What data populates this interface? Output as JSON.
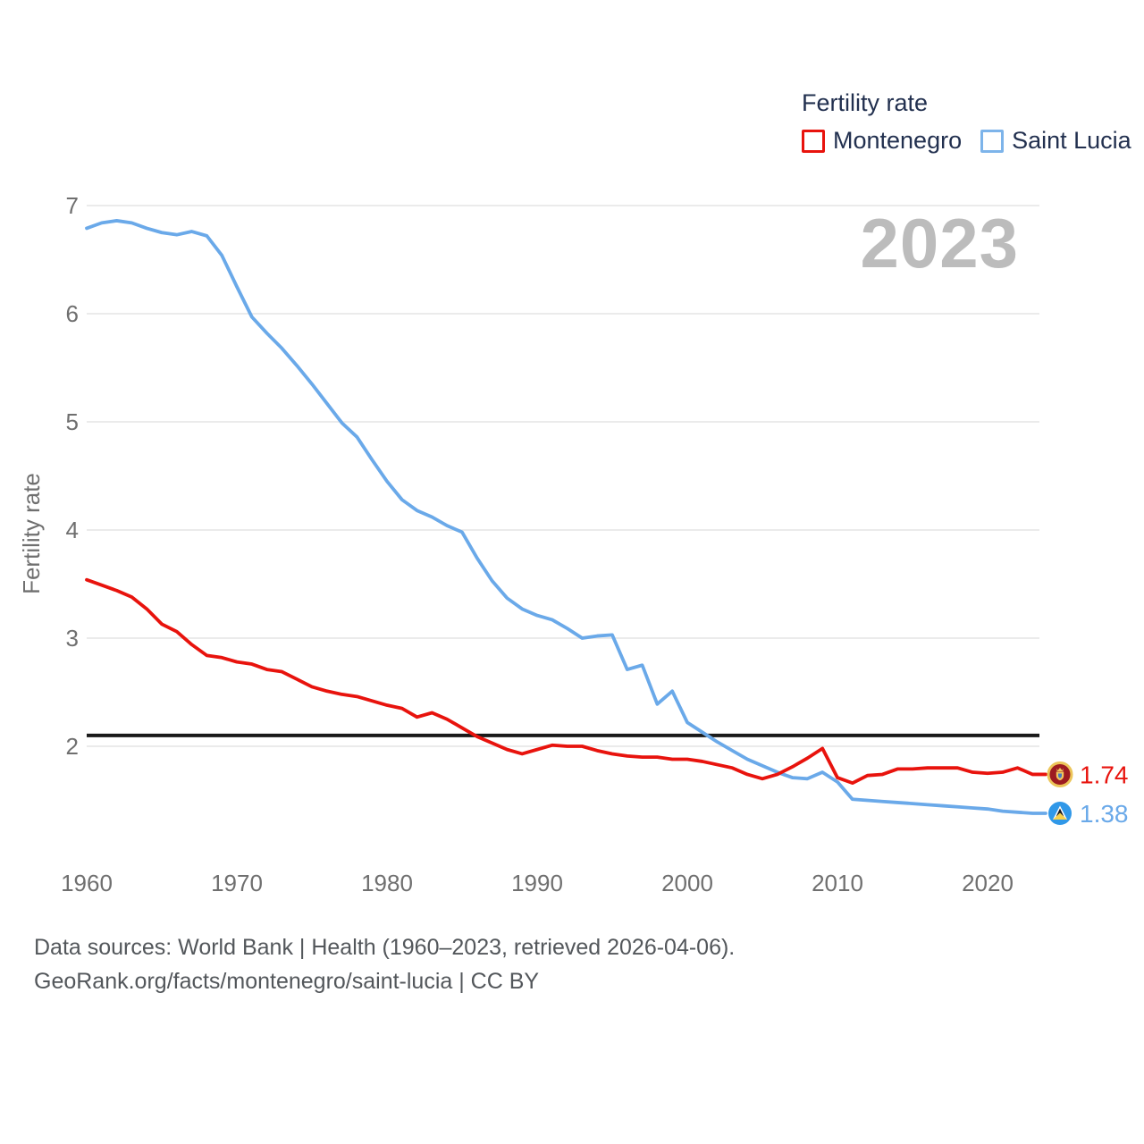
{
  "legend": {
    "title": "Fertility rate",
    "items": [
      {
        "label": "Montenegro",
        "color": "#e8130d"
      },
      {
        "label": "Saint Lucia",
        "color": "#7db4ea"
      }
    ]
  },
  "watermark": "2023",
  "axes": {
    "y_title": "Fertility rate",
    "y_ticks": [
      7,
      6,
      5,
      4,
      3,
      2
    ],
    "x_ticks": [
      1960,
      1970,
      1980,
      1990,
      2000,
      2010,
      2020
    ]
  },
  "reference_line": {
    "value": 2.1,
    "color": "#1a1a1a"
  },
  "end_labels": [
    {
      "series": "Montenegro",
      "value": "1.74",
      "color": "#e8130d",
      "flag": "montenegro-flag-icon"
    },
    {
      "series": "Saint Lucia",
      "value": "1.38",
      "color": "#6aa9e9",
      "flag": "saint-lucia-flag-icon"
    }
  ],
  "footer": {
    "line1": "Data sources: World Bank | Health (1960–2023, retrieved 2026-04-06).",
    "line2": "GeoRank.org/facts/montenegro/saint-lucia | CC BY"
  },
  "chart_data": {
    "type": "line",
    "title": "Fertility rate",
    "ylabel": "Fertility rate",
    "ylim": [
      1.2,
      7.3
    ],
    "grid": true,
    "legend_position": "top-right",
    "reference_line": 2.1,
    "x": [
      1960,
      1961,
      1962,
      1963,
      1964,
      1965,
      1966,
      1967,
      1968,
      1969,
      1970,
      1971,
      1972,
      1973,
      1974,
      1975,
      1976,
      1977,
      1978,
      1979,
      1980,
      1981,
      1982,
      1983,
      1984,
      1985,
      1986,
      1987,
      1988,
      1989,
      1990,
      1991,
      1992,
      1993,
      1994,
      1995,
      1996,
      1997,
      1998,
      1999,
      2000,
      2001,
      2002,
      2003,
      2004,
      2005,
      2006,
      2007,
      2008,
      2009,
      2010,
      2011,
      2012,
      2013,
      2014,
      2015,
      2016,
      2017,
      2018,
      2019,
      2020,
      2021,
      2022,
      2023
    ],
    "series": [
      {
        "name": "Montenegro",
        "color": "#e8130d",
        "end_value": 1.74,
        "values": [
          3.54,
          3.49,
          3.44,
          3.38,
          3.27,
          3.13,
          3.06,
          2.94,
          2.84,
          2.82,
          2.78,
          2.76,
          2.71,
          2.69,
          2.62,
          2.55,
          2.51,
          2.48,
          2.46,
          2.42,
          2.38,
          2.35,
          2.27,
          2.31,
          2.25,
          2.17,
          2.09,
          2.03,
          1.97,
          1.93,
          1.97,
          2.01,
          2.0,
          2.0,
          1.96,
          1.93,
          1.91,
          1.9,
          1.9,
          1.88,
          1.88,
          1.86,
          1.83,
          1.8,
          1.74,
          1.7,
          1.74,
          1.81,
          1.89,
          1.98,
          1.71,
          1.66,
          1.73,
          1.74,
          1.79,
          1.79,
          1.8,
          1.8,
          1.8,
          1.76,
          1.75,
          1.76,
          1.8,
          1.74
        ]
      },
      {
        "name": "Saint Lucia",
        "color": "#6aa9e9",
        "end_value": 1.38,
        "values": [
          6.79,
          6.84,
          6.86,
          6.84,
          6.79,
          6.75,
          6.73,
          6.76,
          6.72,
          6.54,
          6.25,
          5.97,
          5.82,
          5.68,
          5.52,
          5.35,
          5.17,
          4.99,
          4.86,
          4.65,
          4.45,
          4.28,
          4.18,
          4.12,
          4.04,
          3.98,
          3.74,
          3.53,
          3.37,
          3.27,
          3.21,
          3.17,
          3.09,
          3.0,
          3.02,
          3.03,
          2.71,
          2.75,
          2.39,
          2.51,
          2.22,
          2.13,
          2.04,
          1.96,
          1.88,
          1.82,
          1.76,
          1.71,
          1.7,
          1.76,
          1.67,
          1.51,
          1.5,
          1.49,
          1.48,
          1.47,
          1.46,
          1.45,
          1.44,
          1.43,
          1.42,
          1.4,
          1.39,
          1.38
        ]
      }
    ]
  }
}
